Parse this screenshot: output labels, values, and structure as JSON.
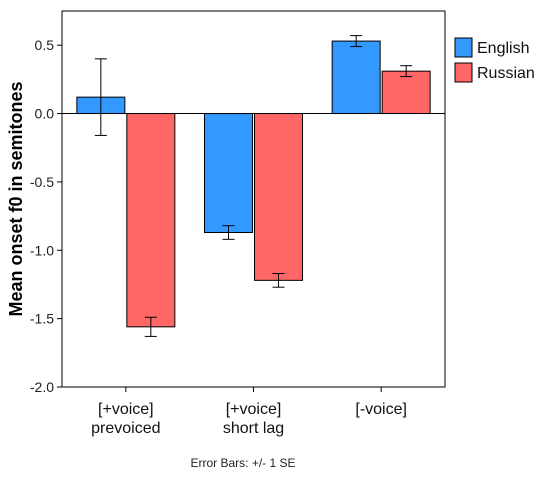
{
  "chart_data": {
    "type": "bar",
    "categories": [
      [
        "[+voice]",
        "prevoiced"
      ],
      [
        "[+voice]",
        "short lag"
      ],
      [
        "[-voice]"
      ]
    ],
    "series": [
      {
        "name": "English",
        "color": "#3399ff",
        "values": [
          0.12,
          -0.87,
          0.53
        ],
        "se": [
          0.28,
          0.05,
          0.04
        ]
      },
      {
        "name": "Russian",
        "color": "#ff6666",
        "values": [
          -1.56,
          -1.22,
          0.31
        ],
        "se": [
          0.07,
          0.05,
          0.04
        ]
      }
    ],
    "ylabel": "Mean onset f0 in semitones",
    "ylim": [
      -2.0,
      0.75
    ],
    "yticks": [
      "0.5",
      "0.0",
      "-0.5",
      "-1.0",
      "-1.5",
      "-2.0"
    ],
    "legend_position": "right",
    "grid": false,
    "footnote": "Error Bars: +/- 1 SE"
  }
}
